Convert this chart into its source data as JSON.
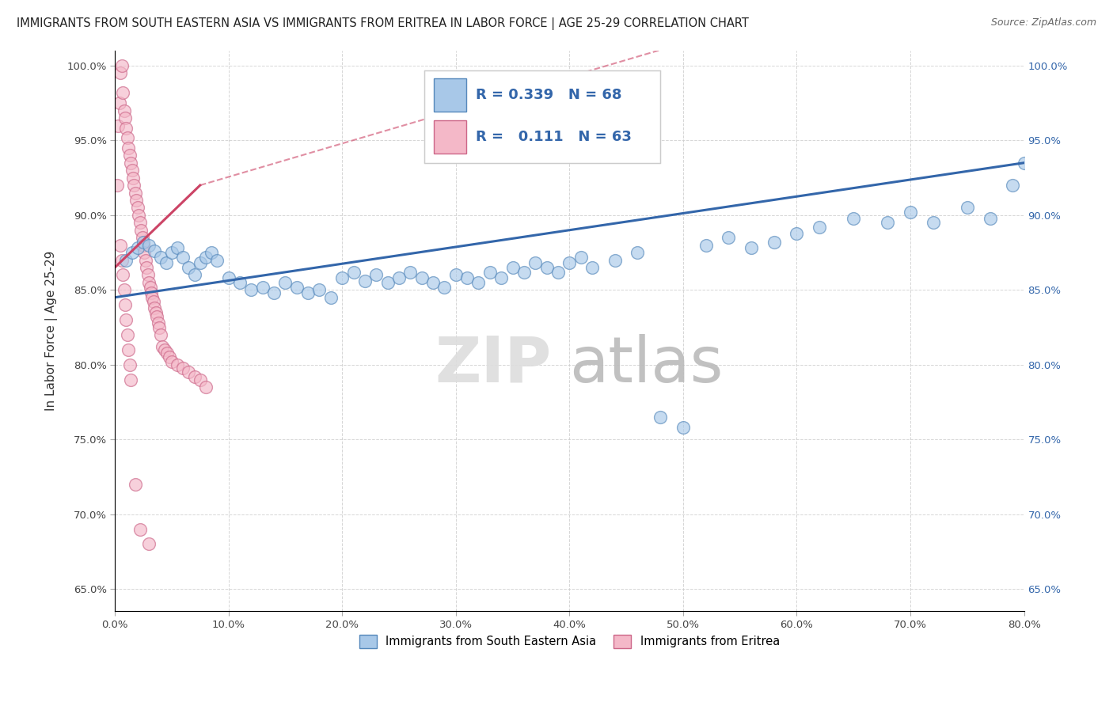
{
  "title": "IMMIGRANTS FROM SOUTH EASTERN ASIA VS IMMIGRANTS FROM ERITREA IN LABOR FORCE | AGE 25-29 CORRELATION CHART",
  "source": "Source: ZipAtlas.com",
  "xlabel_blue": "Immigrants from South Eastern Asia",
  "xlabel_pink": "Immigrants from Eritrea",
  "ylabel": "In Labor Force | Age 25-29",
  "blue_R": 0.339,
  "blue_N": 68,
  "pink_R": 0.111,
  "pink_N": 63,
  "blue_color": "#a8c8e8",
  "pink_color": "#f4b8c8",
  "blue_edge_color": "#5588bb",
  "pink_edge_color": "#cc6688",
  "blue_line_color": "#3366aa",
  "pink_line_color": "#cc4466",
  "xlim": [
    0.0,
    0.8
  ],
  "ylim": [
    0.635,
    1.01
  ],
  "x_ticks": [
    0.0,
    0.1,
    0.2,
    0.3,
    0.4,
    0.5,
    0.6,
    0.7,
    0.8
  ],
  "y_ticks": [
    0.65,
    0.7,
    0.75,
    0.8,
    0.85,
    0.9,
    0.95,
    1.0
  ],
  "blue_line_x0": 0.0,
  "blue_line_y0": 0.845,
  "blue_line_x1": 0.8,
  "blue_line_y1": 0.935,
  "pink_line_solid_x0": 0.0,
  "pink_line_solid_y0": 0.865,
  "pink_line_solid_x1": 0.075,
  "pink_line_solid_y1": 0.92,
  "pink_line_dash_x0": 0.075,
  "pink_line_dash_y0": 0.92,
  "pink_line_dash_x1": 0.5,
  "pink_line_dash_y1": 1.015,
  "blue_scatter_x": [
    0.01,
    0.015,
    0.02,
    0.025,
    0.03,
    0.035,
    0.04,
    0.045,
    0.05,
    0.055,
    0.06,
    0.065,
    0.07,
    0.075,
    0.08,
    0.085,
    0.09,
    0.1,
    0.11,
    0.12,
    0.13,
    0.14,
    0.15,
    0.16,
    0.17,
    0.18,
    0.19,
    0.2,
    0.21,
    0.22,
    0.23,
    0.24,
    0.25,
    0.26,
    0.27,
    0.28,
    0.29,
    0.3,
    0.31,
    0.32,
    0.33,
    0.34,
    0.35,
    0.36,
    0.37,
    0.38,
    0.39,
    0.4,
    0.41,
    0.42,
    0.44,
    0.46,
    0.48,
    0.5,
    0.52,
    0.54,
    0.56,
    0.58,
    0.6,
    0.62,
    0.65,
    0.68,
    0.7,
    0.72,
    0.75,
    0.77,
    0.79,
    0.8
  ],
  "blue_scatter_y": [
    0.87,
    0.875,
    0.878,
    0.882,
    0.88,
    0.876,
    0.872,
    0.868,
    0.875,
    0.878,
    0.872,
    0.865,
    0.86,
    0.868,
    0.872,
    0.875,
    0.87,
    0.858,
    0.855,
    0.85,
    0.852,
    0.848,
    0.855,
    0.852,
    0.848,
    0.85,
    0.845,
    0.858,
    0.862,
    0.856,
    0.86,
    0.855,
    0.858,
    0.862,
    0.858,
    0.855,
    0.852,
    0.86,
    0.858,
    0.855,
    0.862,
    0.858,
    0.865,
    0.862,
    0.868,
    0.865,
    0.862,
    0.868,
    0.872,
    0.865,
    0.87,
    0.875,
    0.765,
    0.758,
    0.88,
    0.885,
    0.878,
    0.882,
    0.888,
    0.892,
    0.898,
    0.895,
    0.902,
    0.895,
    0.905,
    0.898,
    0.92,
    0.935
  ],
  "pink_scatter_x": [
    0.002,
    0.003,
    0.004,
    0.005,
    0.006,
    0.007,
    0.008,
    0.009,
    0.01,
    0.011,
    0.012,
    0.013,
    0.014,
    0.015,
    0.016,
    0.017,
    0.018,
    0.019,
    0.02,
    0.021,
    0.022,
    0.023,
    0.024,
    0.025,
    0.026,
    0.027,
    0.028,
    0.029,
    0.03,
    0.031,
    0.032,
    0.033,
    0.034,
    0.035,
    0.036,
    0.037,
    0.038,
    0.039,
    0.04,
    0.042,
    0.044,
    0.046,
    0.048,
    0.05,
    0.055,
    0.06,
    0.065,
    0.07,
    0.075,
    0.08,
    0.005,
    0.006,
    0.007,
    0.008,
    0.009,
    0.01,
    0.011,
    0.012,
    0.013,
    0.014,
    0.018,
    0.022,
    0.03
  ],
  "pink_scatter_y": [
    0.92,
    0.96,
    0.975,
    0.995,
    1.0,
    0.982,
    0.97,
    0.965,
    0.958,
    0.952,
    0.945,
    0.94,
    0.935,
    0.93,
    0.925,
    0.92,
    0.915,
    0.91,
    0.905,
    0.9,
    0.895,
    0.89,
    0.885,
    0.88,
    0.875,
    0.87,
    0.865,
    0.86,
    0.855,
    0.852,
    0.848,
    0.845,
    0.842,
    0.838,
    0.835,
    0.832,
    0.828,
    0.825,
    0.82,
    0.812,
    0.81,
    0.808,
    0.805,
    0.802,
    0.8,
    0.798,
    0.795,
    0.792,
    0.79,
    0.785,
    0.88,
    0.87,
    0.86,
    0.85,
    0.84,
    0.83,
    0.82,
    0.81,
    0.8,
    0.79,
    0.72,
    0.69,
    0.68
  ]
}
